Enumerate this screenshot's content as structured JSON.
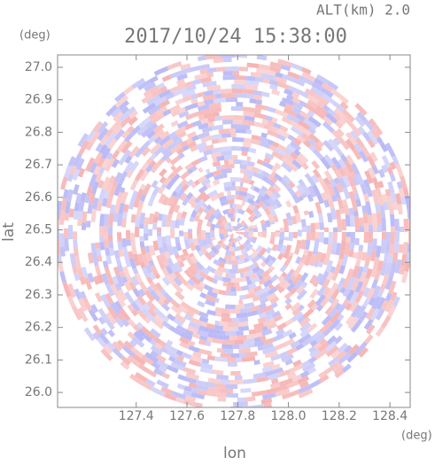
{
  "chart_data": {
    "type": "polar-field",
    "title": "2017/10/24 15:38:00",
    "subtitle": "ALT(km) 2.0",
    "x_label": "lon",
    "y_label": "lat",
    "x_unit": "(deg)",
    "y_unit": "(deg)",
    "xlim": [
      127.09,
      128.48
    ],
    "ylim": [
      25.954,
      27.038
    ],
    "xticks": [
      127.4,
      127.6,
      127.8,
      {
        "value": 128,
        "label": "128.0"
      },
      128.2,
      128.4
    ],
    "yticks": [
      {
        "value": 26,
        "label": "26.0"
      },
      26.1,
      26.2,
      26.3,
      26.4,
      26.5,
      26.6,
      26.7,
      26.8,
      26.9,
      {
        "value": 27,
        "label": "27.0"
      }
    ],
    "colors": [
      "#f6b4b4",
      "#b9b9f6",
      "#ffffff"
    ]
  }
}
